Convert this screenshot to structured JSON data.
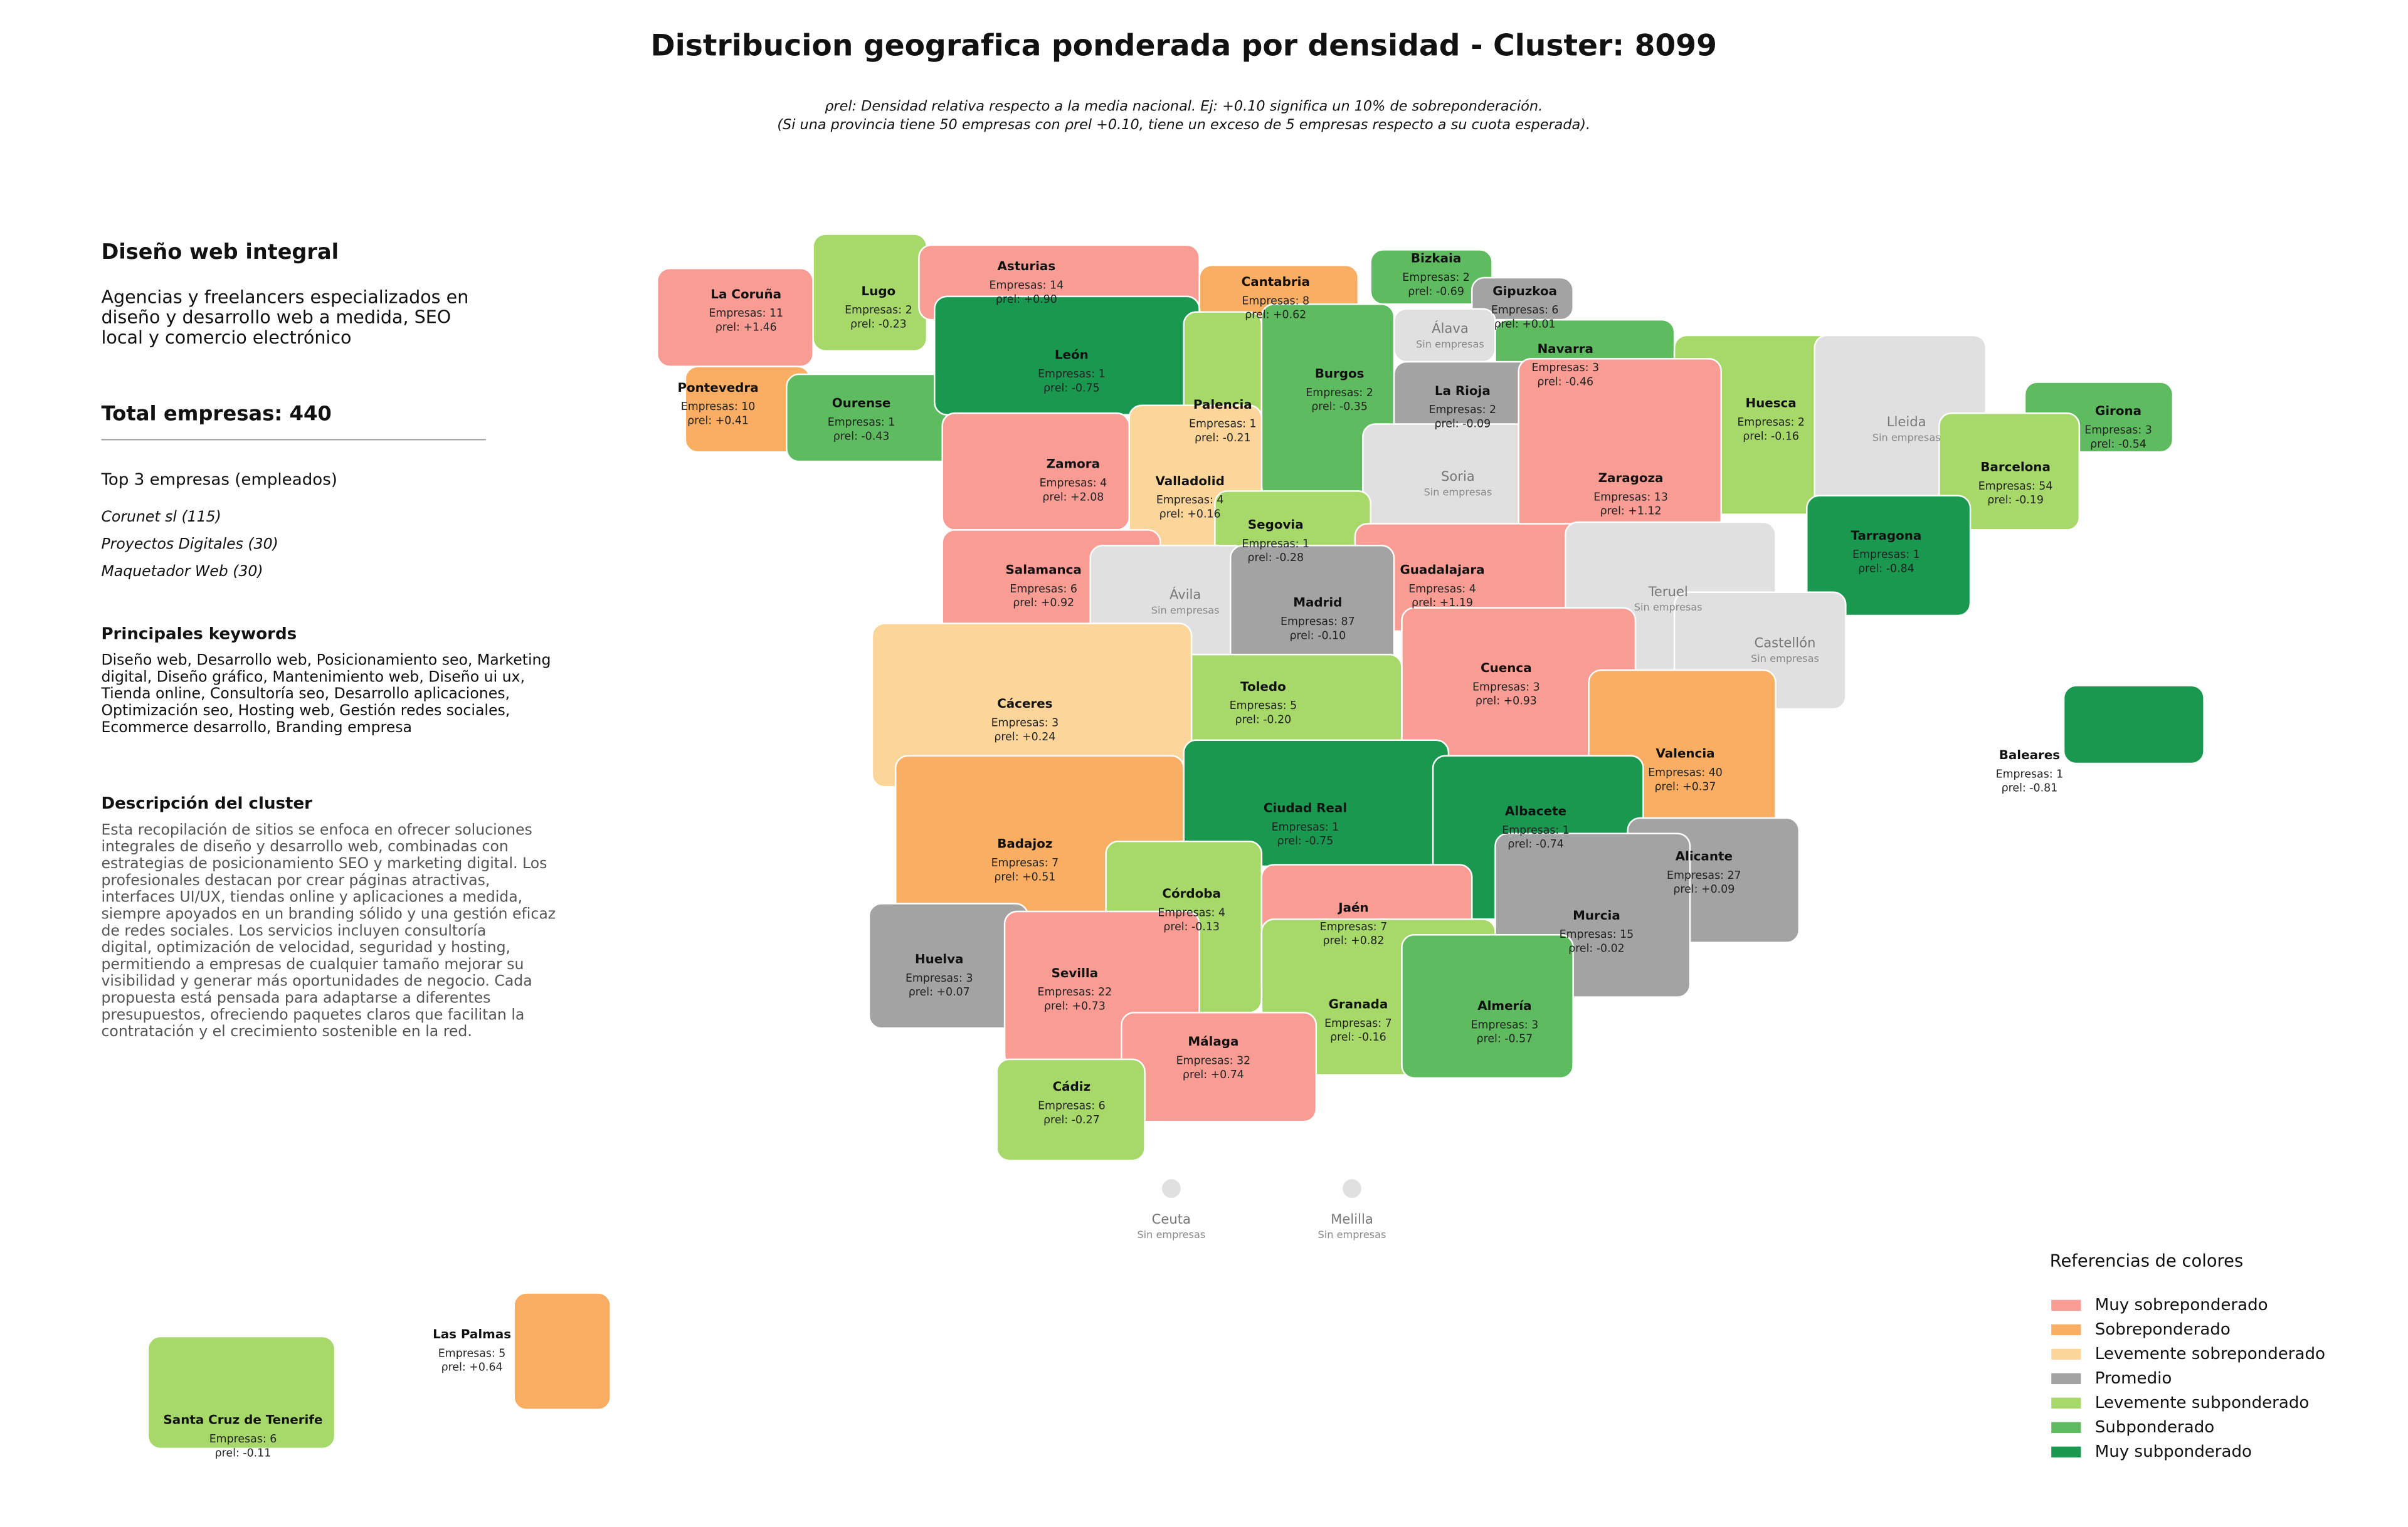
{
  "header": {
    "title": "Distribucion geografica ponderada por densidad - Cluster: 8099",
    "subtitle": [
      "ρrel: Densidad relativa respecto a la media nacional. Ej: +0.10 significa un 10% de sobreponderación.",
      "(Si una provincia tiene 50 empresas con ρrel +0.10, tiene un exceso de 5 empresas respecto a su cuota esperada)."
    ]
  },
  "panel": {
    "heading": "Diseño web integral",
    "summary": [
      "Agencias y freelancers especializados en",
      "diseño y desarrollo web a medida, SEO",
      "local y comercio electrónico"
    ],
    "total": "Total empresas: 440",
    "top_title": "Top 3 empresas (empleados)",
    "top": [
      "Corunet sl (115)",
      "Proyectos Digitales (30)",
      "Maquetador Web (30)"
    ],
    "keywords_title": "Principales keywords",
    "keywords": [
      "Diseño web, Desarrollo web, Posicionamiento seo, Marketing",
      "digital, Diseño gráfico, Mantenimiento web, Diseño ui ux,",
      "Tienda online, Consultoría seo, Desarrollo aplicaciones,",
      "Optimización seo, Hosting web, Gestión redes sociales,",
      "Ecommerce desarrollo, Branding empresa"
    ],
    "description_title": "Descripción del cluster",
    "description": [
      "Esta recopilación de sitios se enfoca en ofrecer soluciones",
      "integrales de diseño y desarrollo web, combinadas con",
      "estrategias de posicionamiento SEO y marketing digital. Los",
      "profesionales destacan por crear páginas atractivas,",
      "interfaces UI/UX, tiendas online y aplicaciones a medida,",
      "siempre apoyados en un branding sólido y una gestión eficaz",
      "de redes sociales. Los servicios incluyen consultoría",
      "digital, optimización de velocidad, seguridad y hosting,",
      "permitiendo a empresas de cualquier tamaño mejorar su",
      "visibilidad y generar más oportunidades de negocio. Cada",
      "propuesta está pensada para adaptarse a diferentes",
      "presupuestos, ofreciendo paquetes claros que facilitan la",
      "contratación y el crecimiento sostenible en la red."
    ]
  },
  "provinces": [
    {
      "name": "La Coruña",
      "companies": "Empresas: 11",
      "rho": "ρrel: +1.46",
      "color": "#f89c94"
    },
    {
      "name": "Lugo",
      "companies": "Empresas: 2",
      "rho": "ρrel: -0.23",
      "color": "#a6d96a"
    },
    {
      "name": "Asturias",
      "companies": "Empresas: 14",
      "rho": "ρrel: +0.90",
      "color": "#f89c94"
    },
    {
      "name": "Cantabria",
      "companies": "Empresas: 8",
      "rho": "ρrel: +0.62",
      "color": "#f9ae63"
    },
    {
      "name": "Bizkaia",
      "companies": "Empresas: 2",
      "rho": "ρrel: -0.69",
      "color": "#5fbb5f"
    },
    {
      "name": "Gipuzkoa",
      "companies": "Empresas: 6",
      "rho": "ρrel: +0.01",
      "color": "#a3a3a3"
    },
    {
      "name": "Álava",
      "note": "Sin empresas",
      "color": "#e0e0e0"
    },
    {
      "name": "Navarra",
      "companies": "Empresas: 3",
      "rho": "ρrel: -0.46",
      "color": "#5fbb5f"
    },
    {
      "name": "Pontevedra",
      "companies": "Empresas: 10",
      "rho": "ρrel: +0.41",
      "color": "#f9ae63"
    },
    {
      "name": "Ourense",
      "companies": "Empresas: 1",
      "rho": "ρrel: -0.43",
      "color": "#5fbb5f"
    },
    {
      "name": "León",
      "companies": "Empresas: 1",
      "rho": "ρrel: -0.75",
      "color": "#1a9850"
    },
    {
      "name": "Palencia",
      "companies": "Empresas: 1",
      "rho": "ρrel: -0.21",
      "color": "#a6d96a"
    },
    {
      "name": "Burgos",
      "companies": "Empresas: 2",
      "rho": "ρrel: -0.35",
      "color": "#5fbb5f"
    },
    {
      "name": "La Rioja",
      "companies": "Empresas: 2",
      "rho": "ρrel: -0.09",
      "color": "#a3a3a3"
    },
    {
      "name": "Huesca",
      "companies": "Empresas: 2",
      "rho": "ρrel: -0.16",
      "color": "#a6d96a"
    },
    {
      "name": "Lleida",
      "note": "Sin empresas",
      "color": "#e0e0e0"
    },
    {
      "name": "Girona",
      "companies": "Empresas: 3",
      "rho": "ρrel: -0.54",
      "color": "#5fbb5f"
    },
    {
      "name": "Zamora",
      "companies": "Empresas: 4",
      "rho": "ρrel: +2.08",
      "color": "#f89c94"
    },
    {
      "name": "Valladolid",
      "companies": "Empresas: 4",
      "rho": "ρrel: +0.16",
      "color": "#fbd59a"
    },
    {
      "name": "Soria",
      "note": "Sin empresas",
      "color": "#e0e0e0"
    },
    {
      "name": "Zaragoza",
      "companies": "Empresas: 13",
      "rho": "ρrel: +1.12",
      "color": "#f89c94"
    },
    {
      "name": "Barcelona",
      "companies": "Empresas: 54",
      "rho": "ρrel: -0.19",
      "color": "#a6d96a"
    },
    {
      "name": "Segovia",
      "companies": "Empresas: 1",
      "rho": "ρrel: -0.28",
      "color": "#a6d96a"
    },
    {
      "name": "Tarragona",
      "companies": "Empresas: 1",
      "rho": "ρrel: -0.84",
      "color": "#1a9850"
    },
    {
      "name": "Salamanca",
      "companies": "Empresas: 6",
      "rho": "ρrel: +0.92",
      "color": "#f89c94"
    },
    {
      "name": "Guadalajara",
      "companies": "Empresas: 4",
      "rho": "ρrel: +1.19",
      "color": "#f89c94"
    },
    {
      "name": "Ávila",
      "note": "Sin empresas",
      "color": "#e0e0e0"
    },
    {
      "name": "Madrid",
      "companies": "Empresas: 87",
      "rho": "ρrel: -0.10",
      "color": "#a3a3a3"
    },
    {
      "name": "Teruel",
      "note": "Sin empresas",
      "color": "#e0e0e0"
    },
    {
      "name": "Castellón",
      "note": "Sin empresas",
      "color": "#e0e0e0"
    },
    {
      "name": "Cuenca",
      "companies": "Empresas: 3",
      "rho": "ρrel: +0.93",
      "color": "#f89c94"
    },
    {
      "name": "Toledo",
      "companies": "Empresas: 5",
      "rho": "ρrel: -0.20",
      "color": "#a6d96a"
    },
    {
      "name": "Cáceres",
      "companies": "Empresas: 3",
      "rho": "ρrel: +0.24",
      "color": "#fbd59a"
    },
    {
      "name": "Valencia",
      "companies": "Empresas: 40",
      "rho": "ρrel: +0.37",
      "color": "#f9ae63"
    },
    {
      "name": "Baleares",
      "companies": "Empresas: 1",
      "rho": "ρrel: -0.81",
      "color": "#1a9850"
    },
    {
      "name": "Ciudad Real",
      "companies": "Empresas: 1",
      "rho": "ρrel: -0.75",
      "color": "#1a9850"
    },
    {
      "name": "Albacete",
      "companies": "Empresas: 1",
      "rho": "ρrel: -0.74",
      "color": "#1a9850"
    },
    {
      "name": "Badajoz",
      "companies": "Empresas: 7",
      "rho": "ρrel: +0.51",
      "color": "#f9ae63"
    },
    {
      "name": "Alicante",
      "companies": "Empresas: 27",
      "rho": "ρrel: +0.09",
      "color": "#a3a3a3"
    },
    {
      "name": "Córdoba",
      "companies": "Empresas: 4",
      "rho": "ρrel: -0.13",
      "color": "#a6d96a"
    },
    {
      "name": "Jaén",
      "companies": "Empresas: 7",
      "rho": "ρrel: +0.82",
      "color": "#f89c94"
    },
    {
      "name": "Murcia",
      "companies": "Empresas: 15",
      "rho": "ρrel: -0.02",
      "color": "#a3a3a3"
    },
    {
      "name": "Huelva",
      "companies": "Empresas: 3",
      "rho": "ρrel: +0.07",
      "color": "#a3a3a3"
    },
    {
      "name": "Sevilla",
      "companies": "Empresas: 22",
      "rho": "ρrel: +0.73",
      "color": "#f89c94"
    },
    {
      "name": "Granada",
      "companies": "Empresas: 7",
      "rho": "ρrel: -0.16",
      "color": "#a6d96a"
    },
    {
      "name": "Almería",
      "companies": "Empresas: 3",
      "rho": "ρrel: -0.57",
      "color": "#5fbb5f"
    },
    {
      "name": "Málaga",
      "companies": "Empresas: 32",
      "rho": "ρrel: +0.74",
      "color": "#f89c94"
    },
    {
      "name": "Cádiz",
      "companies": "Empresas: 6",
      "rho": "ρrel: -0.27",
      "color": "#a6d96a"
    },
    {
      "name": "Las Palmas",
      "companies": "Empresas: 5",
      "rho": "ρrel: +0.64",
      "color": "#f9ae63"
    },
    {
      "name": "Santa Cruz de Tenerife",
      "companies": "Empresas: 6",
      "rho": "ρrel: -0.11",
      "color": "#a6d96a"
    },
    {
      "name": "Ceuta",
      "note": "Sin empresas",
      "color": "#e0e0e0"
    },
    {
      "name": "Melilla",
      "note": "Sin empresas",
      "color": "#e0e0e0"
    }
  ],
  "legend": {
    "title": "Referencias de colores",
    "items": [
      {
        "name": "Muy sobreponderado",
        "color": "#f89c94"
      },
      {
        "name": "Sobreponderado",
        "color": "#f9ae63"
      },
      {
        "name": "Levemente sobreponderado",
        "color": "#fbd59a"
      },
      {
        "name": "Promedio",
        "color": "#a3a3a3"
      },
      {
        "name": "Levemente subponderado",
        "color": "#a6d96a"
      },
      {
        "name": "Subponderado",
        "color": "#5fbb5f"
      },
      {
        "name": "Muy subponderado",
        "color": "#1a9850"
      }
    ]
  }
}
